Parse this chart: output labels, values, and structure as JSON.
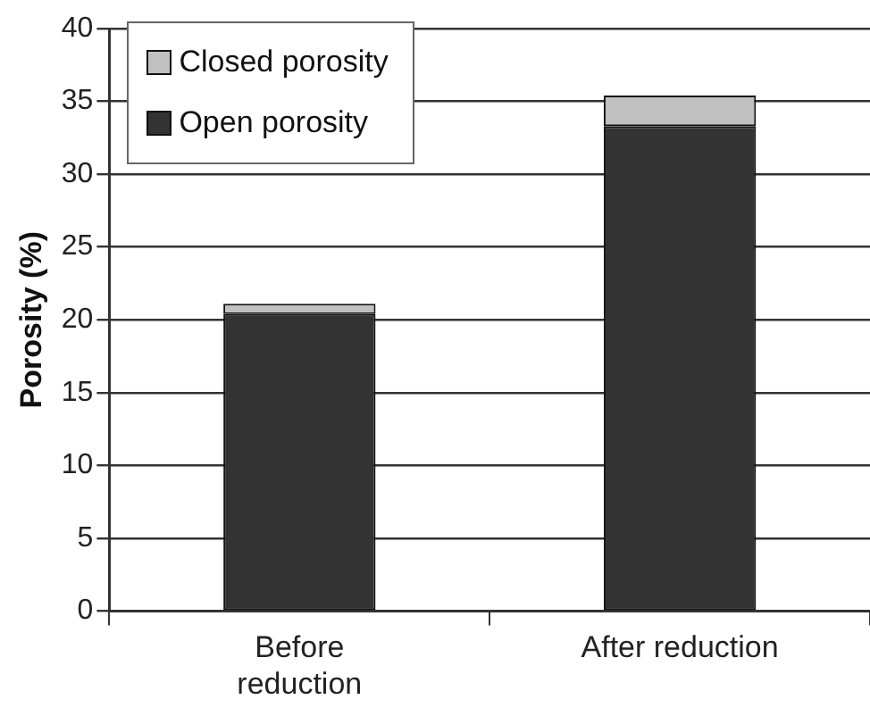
{
  "chart_data": {
    "type": "bar",
    "ylabel": "Porosity (%)",
    "categories": [
      "Before reduction",
      "After reduction"
    ],
    "series": [
      {
        "name": "Open porosity",
        "color": "#333333",
        "values": [
          20.4,
          33.3
        ]
      },
      {
        "name": "Closed porosity",
        "color": "#c0c0c0",
        "values": [
          0.7,
          2.1
        ]
      }
    ],
    "stacked": true,
    "ylim": [
      0,
      40
    ],
    "yticks": [
      0,
      5,
      10,
      15,
      20,
      25,
      30,
      35,
      40
    ],
    "grid": "y",
    "legend": "top left"
  }
}
